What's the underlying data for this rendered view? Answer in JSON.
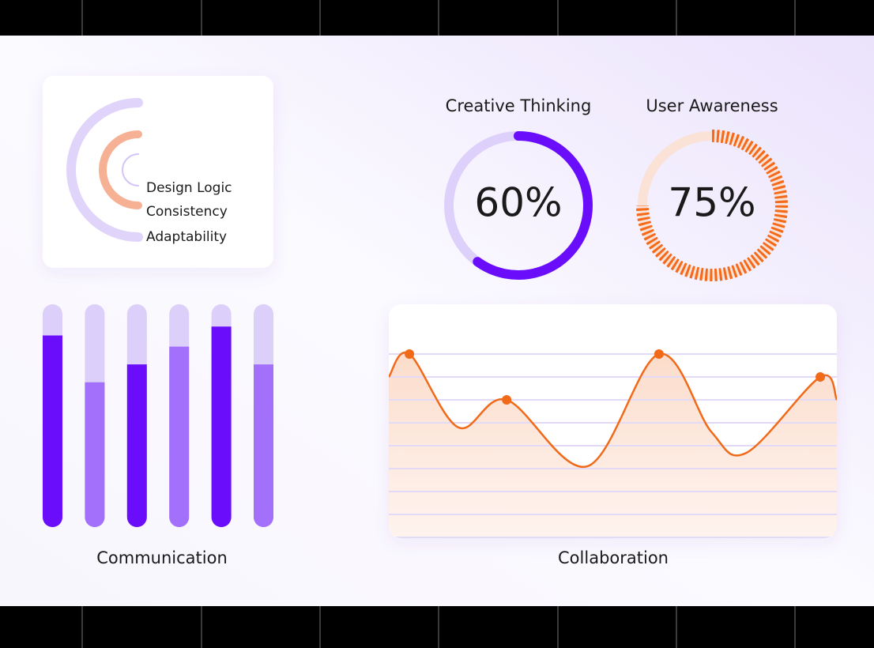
{
  "chart_data": [
    {
      "type": "radial",
      "categories": [
        "Design Logic",
        "Consistency",
        "Adaptability"
      ],
      "values": [
        50,
        50,
        50
      ],
      "max": 100,
      "colors": [
        "#e0d4fb",
        "#f6b195",
        "#d4c4f7"
      ]
    },
    {
      "type": "gauge",
      "title": "Creative Thinking",
      "value": 60,
      "value_label": "60%",
      "max": 100,
      "color": "#6a0dfa",
      "track_color": "#ddd1fb",
      "dashed": false
    },
    {
      "type": "gauge",
      "title": "User Awareness",
      "value": 75,
      "value_label": "75%",
      "max": 100,
      "color": "#f46a1a",
      "track_color": "#fbe2d7",
      "dashed": true
    },
    {
      "type": "bar",
      "title": "Communication",
      "values": [
        86,
        65,
        73,
        81,
        90,
        73
      ],
      "colors": [
        "#6a0dfa",
        "#a370fc",
        "#6a0dfa",
        "#a370fc",
        "#6a0dfa",
        "#a370fc"
      ],
      "track_color": "#dccffa",
      "ylim": [
        0,
        100
      ]
    },
    {
      "type": "line",
      "title": "Collaboration",
      "x": [
        0,
        4.6,
        15.5,
        26.3,
        44.3,
        60.3,
        72.0,
        79.9,
        96.3,
        100
      ],
      "values": [
        7.0,
        8.0,
        4.8,
        6.0,
        3.1,
        8.0,
        4.6,
        3.7,
        7.0,
        6.0
      ],
      "markers": [
        1,
        3,
        5,
        8
      ],
      "color": "#f06a1a",
      "xlim": [
        0,
        100
      ],
      "ylim": [
        0,
        10
      ],
      "yticks": [
        0,
        1,
        2,
        3,
        4,
        5,
        6,
        7,
        8
      ],
      "grid": true
    }
  ]
}
